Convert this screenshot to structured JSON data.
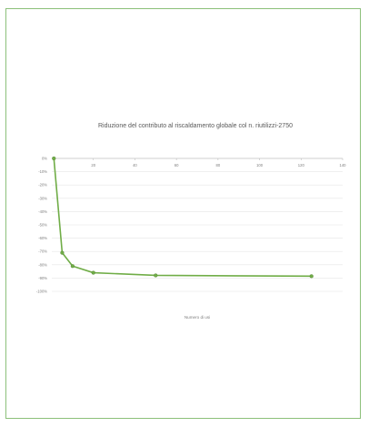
{
  "chart_data": {
    "type": "line",
    "title": "Riduzione del contributo al riscaldamento globale col n. riutilizzi-2750",
    "xlabel": "Numero di usi",
    "ylabel": "",
    "xlim": [
      0,
      140
    ],
    "ylim": [
      -100,
      0
    ],
    "x_ticks": [
      "20",
      "40",
      "60",
      "80",
      "100",
      "120",
      "140"
    ],
    "y_ticks": [
      "0%",
      "-10%",
      "-20%",
      "-30%",
      "-40%",
      "-50%",
      "-60%",
      "-70%",
      "-80%",
      "-90%",
      "-100%"
    ],
    "grid": true,
    "legend": "none",
    "series": [
      {
        "color": "#70ad47",
        "x": [
          1,
          5,
          10,
          20,
          50,
          125
        ],
        "y": [
          0,
          -71,
          -81,
          -86,
          -88,
          -88.6
        ]
      }
    ]
  }
}
